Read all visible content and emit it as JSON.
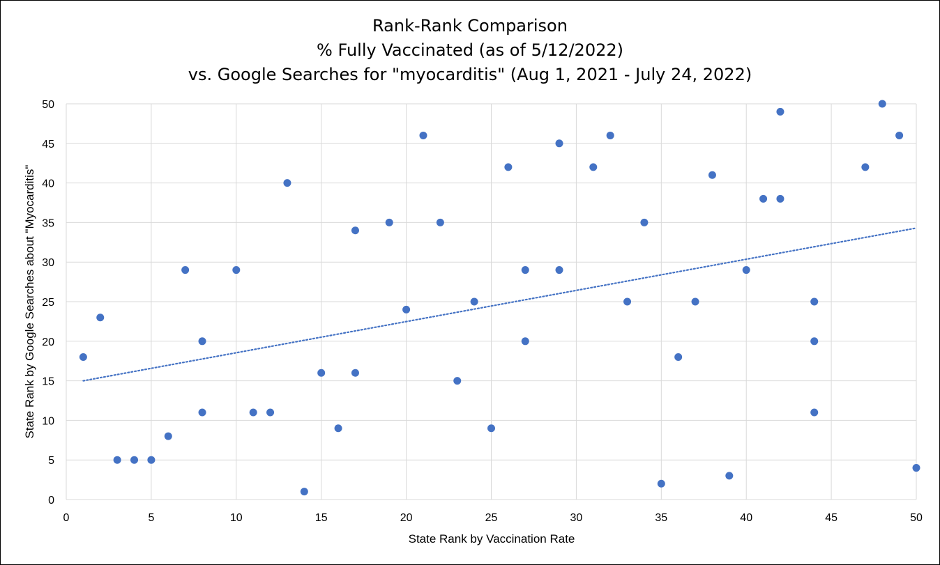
{
  "chart_data": {
    "type": "scatter",
    "title": [
      "Rank-Rank Comparison",
      "% Fully Vaccinated (as of 5/12/2022)",
      "vs. Google Searches for \"myocarditis\" (Aug 1, 2021 - July 24, 2022)"
    ],
    "xlabel": "State Rank by Vaccination Rate",
    "ylabel": "State Rank by Google Searches about \"Myocarditis\"",
    "xlim": [
      0,
      50
    ],
    "ylim": [
      0,
      50
    ],
    "xticks": [
      0,
      5,
      10,
      15,
      20,
      25,
      30,
      35,
      40,
      45,
      50
    ],
    "yticks": [
      0,
      5,
      10,
      15,
      20,
      25,
      30,
      35,
      40,
      45,
      50
    ],
    "grid": true,
    "legend": "none",
    "marker_color": "#4472C4",
    "trendline": {
      "kind": "linear",
      "style": "dotted",
      "color": "#4472C4",
      "x": [
        1,
        50
      ],
      "y": [
        15,
        34.3
      ]
    },
    "points": [
      {
        "x": 1,
        "y": 18
      },
      {
        "x": 2,
        "y": 23
      },
      {
        "x": 3,
        "y": 5
      },
      {
        "x": 4,
        "y": 5
      },
      {
        "x": 5,
        "y": 5
      },
      {
        "x": 6,
        "y": 8
      },
      {
        "x": 7,
        "y": 29
      },
      {
        "x": 8,
        "y": 20
      },
      {
        "x": 8,
        "y": 11
      },
      {
        "x": 10,
        "y": 29
      },
      {
        "x": 11,
        "y": 11
      },
      {
        "x": 12,
        "y": 11
      },
      {
        "x": 13,
        "y": 40
      },
      {
        "x": 14,
        "y": 1
      },
      {
        "x": 15,
        "y": 16
      },
      {
        "x": 16,
        "y": 9
      },
      {
        "x": 17,
        "y": 34
      },
      {
        "x": 17,
        "y": 16
      },
      {
        "x": 19,
        "y": 35
      },
      {
        "x": 20,
        "y": 24
      },
      {
        "x": 21,
        "y": 46
      },
      {
        "x": 22,
        "y": 35
      },
      {
        "x": 23,
        "y": 15
      },
      {
        "x": 24,
        "y": 25
      },
      {
        "x": 25,
        "y": 9
      },
      {
        "x": 26,
        "y": 42
      },
      {
        "x": 27,
        "y": 29
      },
      {
        "x": 27,
        "y": 20
      },
      {
        "x": 29,
        "y": 45
      },
      {
        "x": 29,
        "y": 29
      },
      {
        "x": 31,
        "y": 42
      },
      {
        "x": 32,
        "y": 46
      },
      {
        "x": 33,
        "y": 25
      },
      {
        "x": 34,
        "y": 35
      },
      {
        "x": 35,
        "y": 2
      },
      {
        "x": 36,
        "y": 18
      },
      {
        "x": 37,
        "y": 25
      },
      {
        "x": 38,
        "y": 41
      },
      {
        "x": 39,
        "y": 3
      },
      {
        "x": 40,
        "y": 29
      },
      {
        "x": 41,
        "y": 38
      },
      {
        "x": 42,
        "y": 49
      },
      {
        "x": 42,
        "y": 38
      },
      {
        "x": 44,
        "y": 25
      },
      {
        "x": 44,
        "y": 20
      },
      {
        "x": 44,
        "y": 11
      },
      {
        "x": 47,
        "y": 42
      },
      {
        "x": 48,
        "y": 50
      },
      {
        "x": 49,
        "y": 46
      },
      {
        "x": 50,
        "y": 4
      }
    ]
  }
}
